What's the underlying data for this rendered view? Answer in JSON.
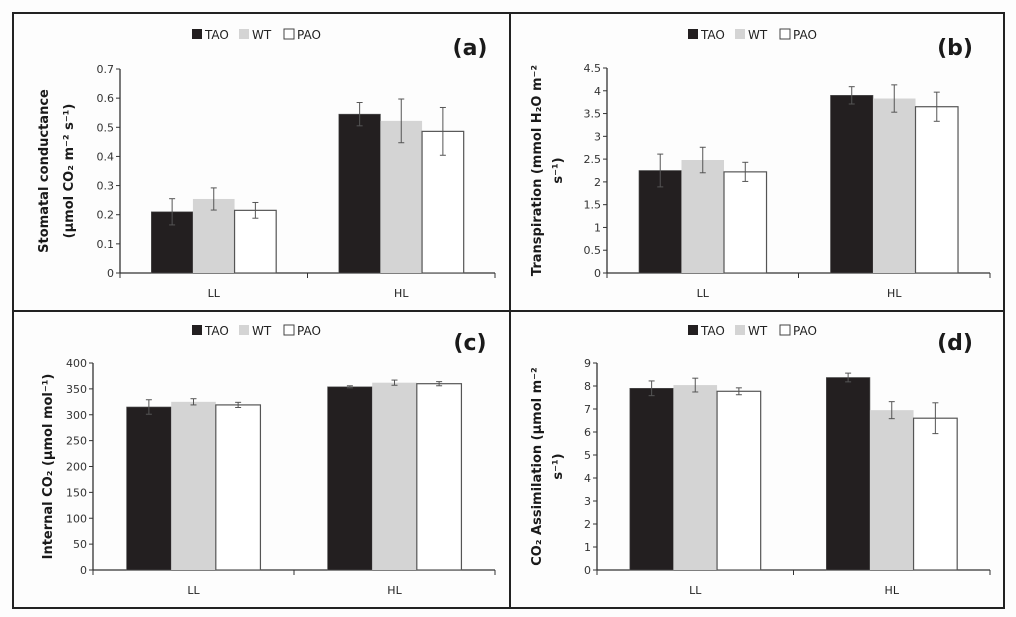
{
  "figure": {
    "series_colors": {
      "TAO": "#231f20",
      "WT": "#d4d4d4",
      "PAO": "#ffffff"
    },
    "bar_stroke": "#555555",
    "axis_color": "#333333",
    "border_color": "#222222"
  },
  "chart_data": [
    {
      "panel": "(a)",
      "type": "bar",
      "title": "",
      "categories": [
        "LL",
        "HL"
      ],
      "legend": [
        "TAO",
        "WT",
        "PAO"
      ],
      "legend_position": "top-center",
      "ylabel_lines": [
        "Stomatal conductance",
        "(μmol CO₂ m⁻² s⁻¹)"
      ],
      "xlabel": "",
      "ylim": [
        0,
        0.7
      ],
      "yticks": [
        0,
        0.1,
        0.2,
        0.3,
        0.4,
        0.5,
        0.6,
        0.7
      ],
      "ytick_labels": [
        "0",
        "0.1",
        "0.2",
        "0.3",
        "0.4",
        "0.5",
        "0.6",
        "0.7"
      ],
      "grid": false,
      "series": [
        {
          "name": "TAO",
          "values": [
            0.21,
            0.545
          ],
          "errors": [
            0.045,
            0.04
          ]
        },
        {
          "name": "WT",
          "values": [
            0.254,
            0.522
          ],
          "errors": [
            0.038,
            0.075
          ]
        },
        {
          "name": "PAO",
          "values": [
            0.215,
            0.486
          ],
          "errors": [
            0.027,
            0.082
          ]
        }
      ]
    },
    {
      "panel": "(b)",
      "type": "bar",
      "title": "",
      "categories": [
        "LL",
        "HL"
      ],
      "legend": [
        "TAO",
        "WT",
        "PAO"
      ],
      "legend_position": "top-center",
      "ylabel_lines": [
        "Transpiration (mmol H₂O m⁻²",
        "s⁻¹)"
      ],
      "xlabel": "",
      "ylim": [
        0,
        4.5
      ],
      "yticks": [
        0,
        0.5,
        1,
        1.5,
        2,
        2.5,
        3,
        3.5,
        4,
        4.5
      ],
      "ytick_labels": [
        "0",
        "0.5",
        "1",
        "1.5",
        "2",
        "2.5",
        "3",
        "3.5",
        "4",
        "4.5"
      ],
      "grid": false,
      "series": [
        {
          "name": "TAO",
          "values": [
            2.25,
            3.9
          ],
          "errors": [
            0.36,
            0.19
          ]
        },
        {
          "name": "WT",
          "values": [
            2.48,
            3.83
          ],
          "errors": [
            0.28,
            0.3
          ]
        },
        {
          "name": "PAO",
          "values": [
            2.22,
            3.65
          ],
          "errors": [
            0.21,
            0.32
          ]
        }
      ]
    },
    {
      "panel": "(c)",
      "type": "bar",
      "title": "",
      "categories": [
        "LL",
        "HL"
      ],
      "legend": [
        "TAO",
        "WT",
        "PAO"
      ],
      "legend_position": "top-center",
      "ylabel_lines": [
        "Internal CO₂ (μmol mol⁻¹)"
      ],
      "xlabel": "",
      "ylim": [
        0,
        400
      ],
      "yticks": [
        0,
        50,
        100,
        150,
        200,
        250,
        300,
        350,
        400
      ],
      "ytick_labels": [
        "0",
        "50",
        "100",
        "150",
        "200",
        "250",
        "300",
        "350",
        "400"
      ],
      "grid": false,
      "series": [
        {
          "name": "TAO",
          "values": [
            315,
            354
          ],
          "errors": [
            14,
            2
          ]
        },
        {
          "name": "WT",
          "values": [
            325,
            362
          ],
          "errors": [
            6,
            5
          ]
        },
        {
          "name": "PAO",
          "values": [
            319,
            360
          ],
          "errors": [
            5,
            4
          ]
        }
      ]
    },
    {
      "panel": "(d)",
      "type": "bar",
      "title": "",
      "categories": [
        "LL",
        "HL"
      ],
      "legend": [
        "TAO",
        "WT",
        "PAO"
      ],
      "legend_position": "top-center",
      "ylabel_lines": [
        "CO₂ Assimilation (μmol m⁻²",
        "s⁻¹)"
      ],
      "xlabel": "",
      "ylim": [
        0,
        9
      ],
      "yticks": [
        0,
        1,
        2,
        3,
        4,
        5,
        6,
        7,
        8,
        9
      ],
      "ytick_labels": [
        "0",
        "1",
        "2",
        "3",
        "4",
        "5",
        "6",
        "7",
        "8",
        "9"
      ],
      "grid": false,
      "series": [
        {
          "name": "TAO",
          "values": [
            7.9,
            8.37
          ],
          "errors": [
            0.32,
            0.19
          ]
        },
        {
          "name": "WT",
          "values": [
            8.04,
            6.95
          ],
          "errors": [
            0.3,
            0.37
          ]
        },
        {
          "name": "PAO",
          "values": [
            7.77,
            6.6
          ],
          "errors": [
            0.15,
            0.67
          ]
        }
      ]
    }
  ]
}
